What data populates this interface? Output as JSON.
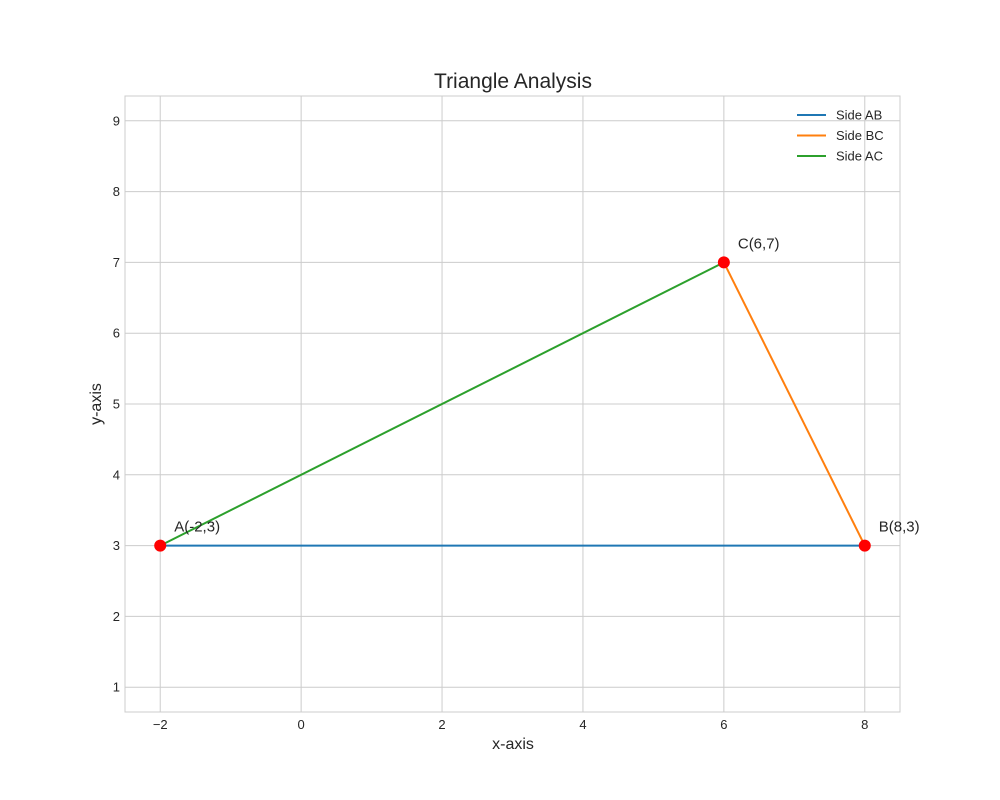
{
  "chart_data": {
    "type": "line",
    "title": "Triangle Analysis",
    "xlabel": "x-axis",
    "ylabel": "y-axis",
    "xlim": [
      -2.5,
      8.5
    ],
    "ylim": [
      0.65,
      9.35
    ],
    "x_ticks": [
      -2,
      0,
      2,
      4,
      6,
      8
    ],
    "x_tick_labels": [
      "−2",
      "0",
      "2",
      "4",
      "6",
      "8"
    ],
    "y_ticks": [
      1,
      2,
      3,
      4,
      5,
      6,
      7,
      8,
      9
    ],
    "y_tick_labels": [
      "1",
      "2",
      "3",
      "4",
      "5",
      "6",
      "7",
      "8",
      "9"
    ],
    "grid": true,
    "legend_position": "top-right",
    "series": [
      {
        "name": "Side AB",
        "color": "#1f77b4",
        "x": [
          -2,
          8
        ],
        "y": [
          3,
          3
        ]
      },
      {
        "name": "Side BC",
        "color": "#ff7f0e",
        "x": [
          8,
          6
        ],
        "y": [
          3,
          7
        ]
      },
      {
        "name": "Side AC",
        "color": "#2ca02c",
        "x": [
          -2,
          6
        ],
        "y": [
          3,
          7
        ]
      }
    ],
    "points": [
      {
        "label": "A(-2,3)",
        "x": -2,
        "y": 3
      },
      {
        "label": "B(8,3)",
        "x": 8,
        "y": 3
      },
      {
        "label": "C(6,7)",
        "x": 6,
        "y": 7
      }
    ],
    "point_color": "#ff0000"
  }
}
